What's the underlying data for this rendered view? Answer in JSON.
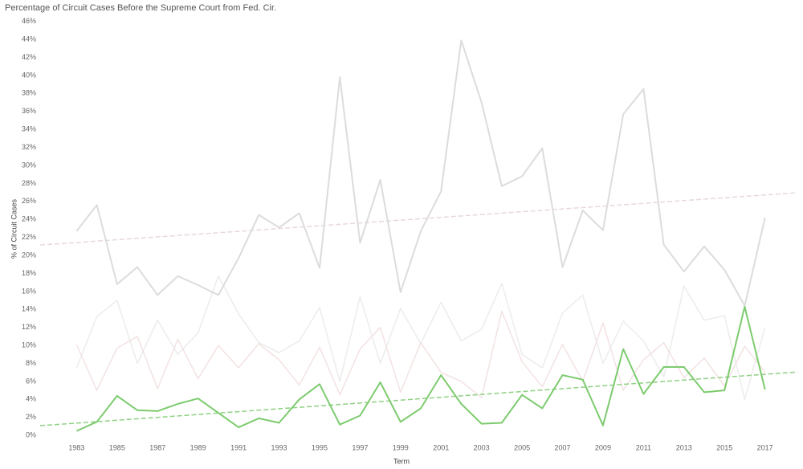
{
  "chart_data": {
    "type": "line",
    "title": "Percentage of Circuit Cases Before the Supreme Court from Fed. Cir.",
    "x_label": "Term",
    "y_label": "% of Circuit Cases",
    "x": [
      1983,
      1984,
      1985,
      1986,
      1987,
      1988,
      1989,
      1990,
      1991,
      1992,
      1993,
      1994,
      1995,
      1996,
      1997,
      1998,
      1999,
      2000,
      2001,
      2002,
      2003,
      2004,
      2005,
      2006,
      2007,
      2008,
      2009,
      2010,
      2011,
      2012,
      2013,
      2014,
      2015,
      2016,
      2017
    ],
    "series": [
      {
        "color": "#ececec",
        "width": 1.5,
        "values": [
          7.5,
          13.2,
          15.0,
          8.0,
          12.8,
          9.0,
          11.4,
          17.7,
          13.5,
          10.3,
          9.2,
          10.5,
          14.2,
          6.0,
          15.4,
          8.0,
          14.1,
          10.2,
          14.8,
          10.5,
          11.8,
          16.9,
          9.0,
          7.5,
          13.6,
          15.6,
          8.0,
          12.7,
          10.5,
          6.5,
          16.6,
          12.8,
          13.3,
          4.0,
          12.0
        ]
      },
      {
        "color": "#f3e2e2",
        "width": 1.5,
        "values": [
          10.1,
          5.0,
          9.7,
          11.0,
          5.2,
          10.7,
          6.3,
          10.0,
          7.5,
          10.2,
          8.4,
          5.6,
          9.8,
          4.5,
          9.6,
          12.0,
          4.8,
          10.3,
          7.0,
          6.0,
          4.2,
          13.8,
          8.2,
          5.4,
          10.1,
          6.0,
          12.5,
          5.0,
          8.4,
          10.3,
          6.4,
          8.6,
          5.5,
          9.9,
          7.0
        ]
      },
      {
        "color": "#dcdcdc",
        "width": 2,
        "trend": "#e8d8d8",
        "values": [
          22.7,
          25.6,
          16.8,
          18.7,
          15.6,
          17.7,
          16.7,
          15.6,
          19.7,
          24.5,
          23.1,
          24.7,
          18.6,
          39.8,
          21.4,
          28.4,
          15.9,
          22.7,
          27.1,
          43.9,
          37.0,
          27.7,
          28.8,
          31.9,
          18.7,
          25.0,
          22.8,
          35.7,
          38.5,
          21.2,
          18.2,
          21.0,
          18.4,
          14.4,
          24.2
        ]
      },
      {
        "color": "#7dcb6e",
        "width": 2,
        "trend": "#8fd083",
        "values": [
          0.5,
          1.5,
          4.4,
          2.8,
          2.7,
          3.5,
          4.1,
          2.5,
          0.9,
          1.9,
          1.4,
          4.0,
          5.7,
          1.2,
          2.2,
          5.9,
          1.5,
          3.0,
          6.7,
          3.5,
          1.3,
          1.4,
          4.5,
          3.0,
          6.7,
          6.2,
          1.1,
          9.6,
          4.6,
          7.6,
          7.6,
          4.8,
          5.0,
          14.3,
          5.1
        ]
      }
    ],
    "xlim": [
      1981.2,
      2018.6
    ],
    "xticks": [
      1983,
      1985,
      1987,
      1989,
      1991,
      1993,
      1995,
      1997,
      1999,
      2001,
      2003,
      2005,
      2007,
      2009,
      2011,
      2013,
      2015,
      2017
    ],
    "ylim": [
      -0.7,
      46.6
    ],
    "yticks": [
      {
        "value": 0,
        "label": "0%"
      },
      {
        "value": 2,
        "label": "2%"
      },
      {
        "value": 4,
        "label": "4%"
      },
      {
        "value": 6,
        "label": "6%"
      },
      {
        "value": 8,
        "label": "8%"
      },
      {
        "value": 10,
        "label": "10%"
      },
      {
        "value": 12,
        "label": "12%"
      },
      {
        "value": 14,
        "label": "14%"
      },
      {
        "value": 16,
        "label": "16%"
      },
      {
        "value": 18,
        "label": "18%"
      },
      {
        "value": 20,
        "label": "20%"
      },
      {
        "value": 22,
        "label": "22%"
      },
      {
        "value": 24,
        "label": "24%"
      },
      {
        "value": 26,
        "label": "26%"
      },
      {
        "value": 28,
        "label": "28%"
      },
      {
        "value": 30,
        "label": "30%"
      },
      {
        "value": 32,
        "label": "32%"
      },
      {
        "value": 34,
        "label": "34%"
      },
      {
        "value": 36,
        "label": "36%"
      },
      {
        "value": 38,
        "label": "38%"
      },
      {
        "value": 40,
        "label": "40%"
      },
      {
        "value": 42,
        "label": "42%"
      },
      {
        "value": 44,
        "label": "44%"
      },
      {
        "value": 46,
        "label": "46%"
      }
    ],
    "grid": false,
    "trendline": true
  }
}
